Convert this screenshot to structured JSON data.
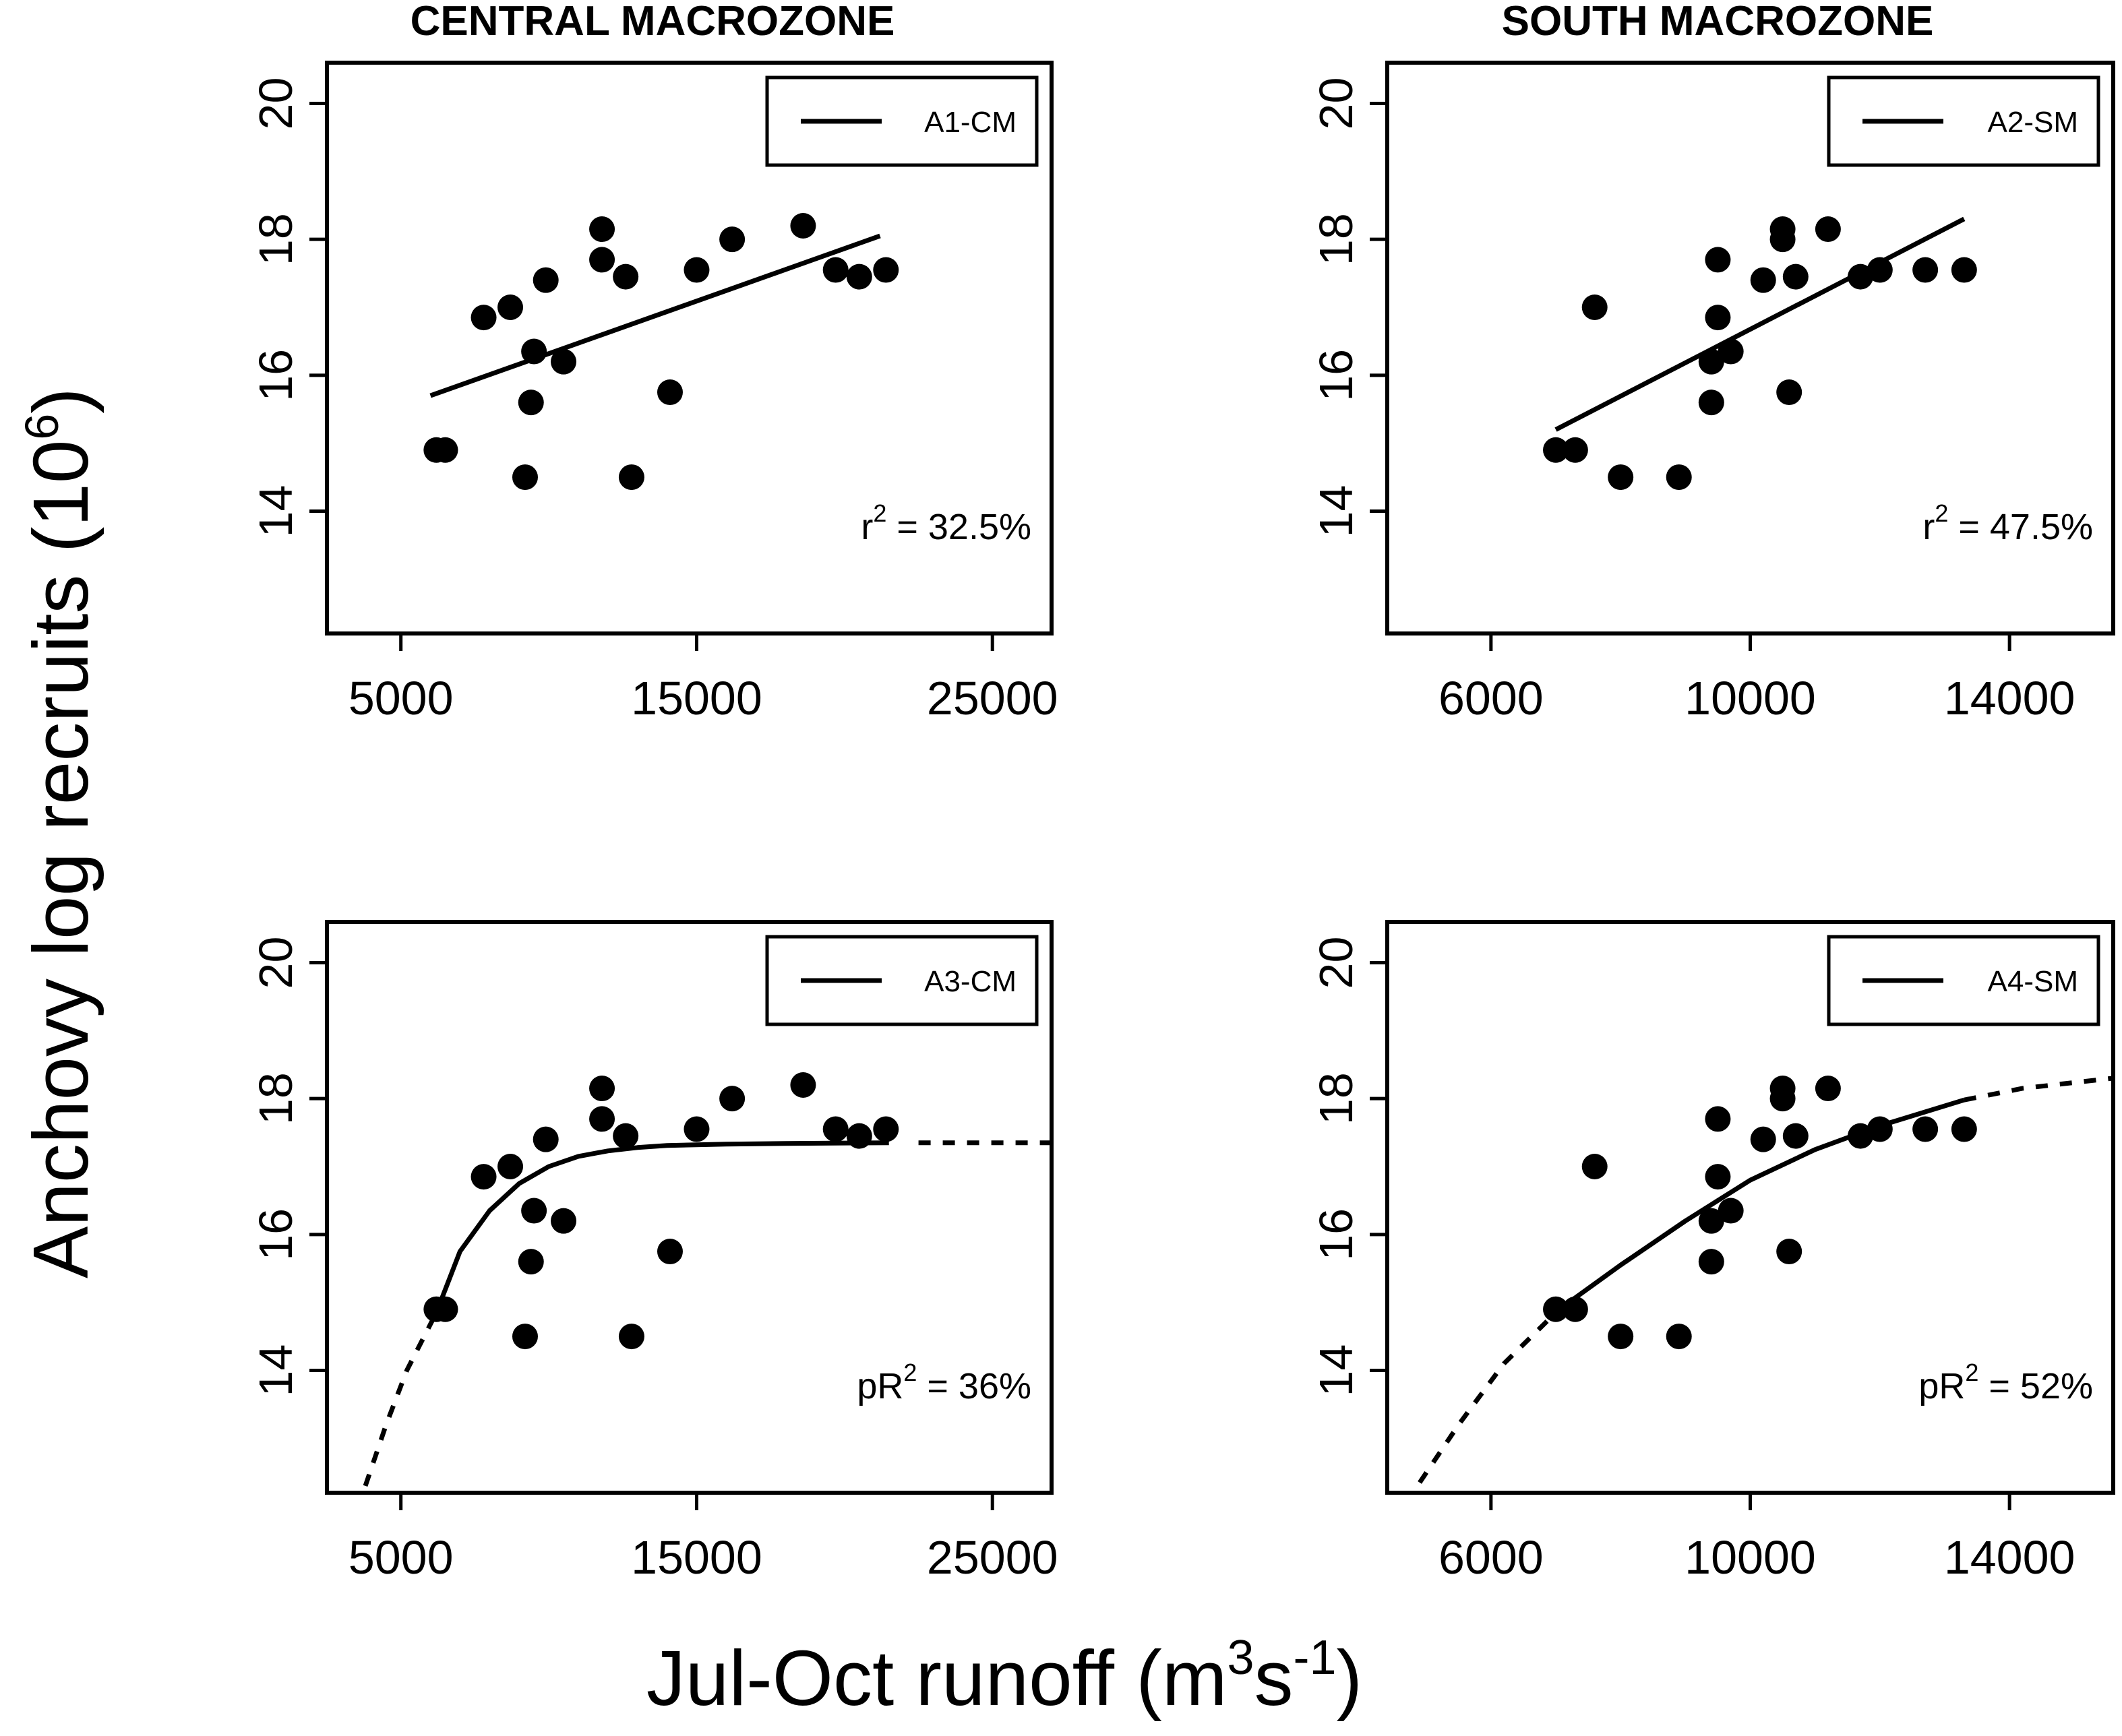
{
  "chart_data": [
    {
      "type": "scatter",
      "title": "CENTRAL MACROZONE",
      "legend": "A1-CM",
      "stat_prefix": "r",
      "stat_sup": "2",
      "stat_value": " = 32.5%",
      "xlim": [
        2500,
        27000
      ],
      "ylim": [
        12.2,
        20.6
      ],
      "xticks": [
        "5000",
        "15000",
        "25000"
      ],
      "yticks": [
        "14",
        "16",
        "18",
        "20"
      ],
      "points": [
        [
          6200,
          14.9
        ],
        [
          6500,
          14.9
        ],
        [
          7800,
          16.85
        ],
        [
          8700,
          17.0
        ],
        [
          9200,
          14.5
        ],
        [
          9400,
          15.6
        ],
        [
          9500,
          16.35
        ],
        [
          9900,
          17.4
        ],
        [
          10500,
          16.2
        ],
        [
          11800,
          18.15
        ],
        [
          11800,
          17.7
        ],
        [
          12600,
          17.45
        ],
        [
          12800,
          14.5
        ],
        [
          14100,
          15.75
        ],
        [
          15000,
          17.55
        ],
        [
          16200,
          18.0
        ],
        [
          18600,
          18.2
        ],
        [
          19700,
          17.55
        ],
        [
          20500,
          17.45
        ],
        [
          21400,
          17.55
        ]
      ],
      "fit_solid": [
        [
          6000,
          15.7
        ],
        [
          21200,
          18.05
        ]
      ],
      "fit_dashed": []
    },
    {
      "type": "scatter",
      "title": "SOUTH MACROZONE",
      "legend": "A2-SM",
      "stat_prefix": "r",
      "stat_sup": "2",
      "stat_value": " = 47.5%",
      "xlim": [
        4400,
        15600
      ],
      "ylim": [
        12.2,
        20.6
      ],
      "xticks": [
        "6000",
        "10000",
        "14000"
      ],
      "yticks": [
        "14",
        "16",
        "18",
        "20"
      ],
      "points": [
        [
          7000,
          14.9
        ],
        [
          7300,
          14.9
        ],
        [
          7600,
          17.0
        ],
        [
          8000,
          14.5
        ],
        [
          8900,
          14.5
        ],
        [
          9400,
          15.6
        ],
        [
          9400,
          16.2
        ],
        [
          9500,
          17.7
        ],
        [
          9500,
          16.85
        ],
        [
          9700,
          16.35
        ],
        [
          10200,
          17.4
        ],
        [
          10500,
          18.15
        ],
        [
          10500,
          18.0
        ],
        [
          10600,
          15.75
        ],
        [
          10700,
          17.45
        ],
        [
          11200,
          18.15
        ],
        [
          11700,
          17.45
        ],
        [
          12000,
          17.55
        ],
        [
          12700,
          17.55
        ],
        [
          13300,
          17.55
        ]
      ],
      "fit_solid": [
        [
          7000,
          15.2
        ],
        [
          13300,
          18.3
        ]
      ],
      "fit_dashed": []
    },
    {
      "type": "scatter",
      "legend": "A3-CM",
      "stat_prefix": "pR",
      "stat_sup": "2",
      "stat_value": " = 36%",
      "xlim": [
        2500,
        27000
      ],
      "ylim": [
        12.2,
        20.6
      ],
      "xticks": [
        "5000",
        "15000",
        "25000"
      ],
      "yticks": [
        "14",
        "16",
        "18",
        "20"
      ],
      "points": [
        [
          6200,
          14.9
        ],
        [
          6500,
          14.9
        ],
        [
          7800,
          16.85
        ],
        [
          8700,
          17.0
        ],
        [
          9200,
          14.5
        ],
        [
          9400,
          15.6
        ],
        [
          9500,
          16.35
        ],
        [
          9900,
          17.4
        ],
        [
          10500,
          16.2
        ],
        [
          11800,
          18.15
        ],
        [
          11800,
          17.7
        ],
        [
          12600,
          17.45
        ],
        [
          12800,
          14.5
        ],
        [
          14100,
          15.75
        ],
        [
          15000,
          17.55
        ],
        [
          16200,
          18.0
        ],
        [
          18600,
          18.2
        ],
        [
          19700,
          17.55
        ],
        [
          20500,
          17.45
        ],
        [
          21400,
          17.55
        ]
      ],
      "fit_solid": [
        [
          6200,
          14.85
        ],
        [
          7000,
          15.75
        ],
        [
          8000,
          16.35
        ],
        [
          9000,
          16.75
        ],
        [
          10000,
          17.0
        ],
        [
          11000,
          17.15
        ],
        [
          12000,
          17.23
        ],
        [
          13000,
          17.28
        ],
        [
          14000,
          17.31
        ],
        [
          16000,
          17.33
        ],
        [
          18000,
          17.34
        ],
        [
          21500,
          17.35
        ]
      ],
      "fit_dashed": [
        [
          3800,
          12.3
        ],
        [
          4500,
          13.2
        ],
        [
          5200,
          14.0
        ],
        [
          6200,
          14.85
        ],
        [
          null,
          null
        ],
        [
          22500,
          17.35
        ],
        [
          27000,
          17.35
        ]
      ]
    },
    {
      "type": "scatter",
      "legend": "A4-SM",
      "stat_prefix": "pR",
      "stat_sup": "2",
      "stat_value": " = 52%",
      "xlim": [
        4400,
        15600
      ],
      "ylim": [
        12.2,
        20.6
      ],
      "xticks": [
        "6000",
        "10000",
        "14000"
      ],
      "yticks": [
        "14",
        "16",
        "18",
        "20"
      ],
      "points": [
        [
          7000,
          14.9
        ],
        [
          7300,
          14.9
        ],
        [
          7600,
          17.0
        ],
        [
          8000,
          14.5
        ],
        [
          8900,
          14.5
        ],
        [
          9400,
          15.6
        ],
        [
          9400,
          16.2
        ],
        [
          9500,
          17.7
        ],
        [
          9500,
          16.85
        ],
        [
          9700,
          16.35
        ],
        [
          10200,
          17.4
        ],
        [
          10500,
          18.15
        ],
        [
          10500,
          18.0
        ],
        [
          10600,
          15.75
        ],
        [
          10700,
          17.45
        ],
        [
          11200,
          18.15
        ],
        [
          11700,
          17.45
        ],
        [
          12000,
          17.55
        ],
        [
          12700,
          17.55
        ],
        [
          13300,
          17.55
        ]
      ],
      "fit_solid": [
        [
          7200,
          15.0
        ],
        [
          8000,
          15.55
        ],
        [
          9000,
          16.2
        ],
        [
          10000,
          16.8
        ],
        [
          11000,
          17.25
        ],
        [
          12000,
          17.6
        ],
        [
          13300,
          17.98
        ]
      ],
      "fit_dashed": [
        [
          4900,
          12.35
        ],
        [
          5500,
          13.2
        ],
        [
          6200,
          14.1
        ],
        [
          7000,
          14.85
        ],
        [
          null,
          null
        ],
        [
          13300,
          17.98
        ],
        [
          14200,
          18.15
        ],
        [
          15600,
          18.3
        ]
      ]
    }
  ],
  "ylabel_text": "Anchovy log recruits (10",
  "ylabel_sup": "6",
  "ylabel_close": ")",
  "xlabel_text": "Jul-Oct runoff (m",
  "xlabel_sup1": "3",
  "xlabel_mid": "s",
  "xlabel_sup2": "-1",
  "xlabel_close": ")"
}
